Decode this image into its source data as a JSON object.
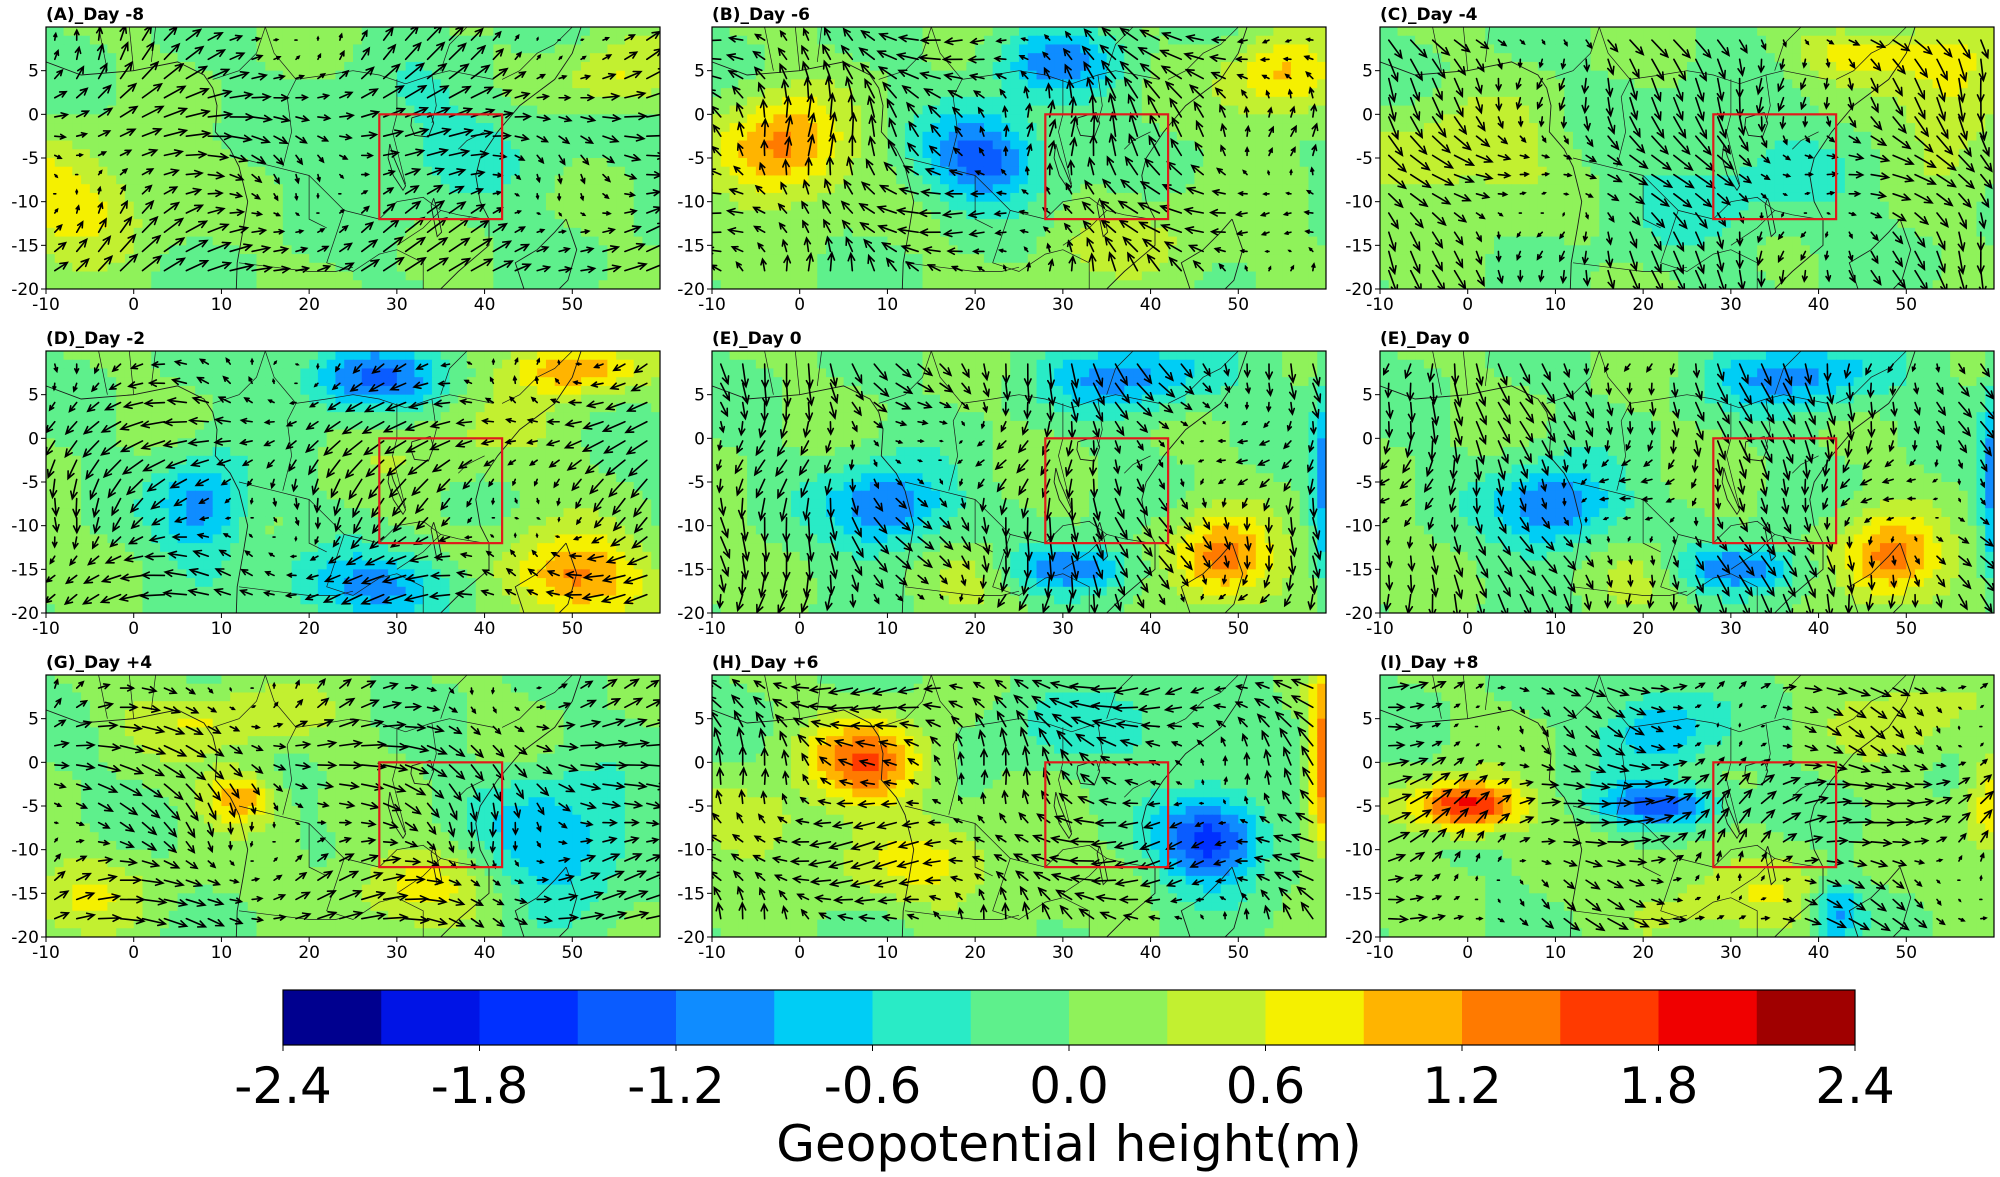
{
  "chart_data": {
    "type": "heatmap",
    "description_variable": "Geopotential height anomaly with wind vectors",
    "panel_xlim": [
      -10,
      60
    ],
    "panel_ylim": [
      -20,
      10
    ],
    "x_ticks": [
      -10,
      0,
      10,
      20,
      30,
      40,
      50
    ],
    "y_ticks": [
      5,
      0,
      -5,
      -10,
      -15,
      -20
    ],
    "region_box": {
      "lon": [
        28,
        42
      ],
      "lat": [
        -12,
        0
      ],
      "color": "#e01b1b"
    },
    "panels": [
      {
        "title": "(A)_Day -8",
        "centers": [
          [
            55,
            4,
            0.7,
            6,
            4
          ],
          [
            -8,
            -10,
            0.8,
            10,
            6
          ],
          [
            35,
            -3,
            -0.35,
            15,
            8
          ]
        ],
        "wind": [
          1.0,
          0.3
        ]
      },
      {
        "title": "(B)_Day -6",
        "centers": [
          [
            -2,
            -4,
            1.35,
            7,
            6
          ],
          [
            21,
            -5,
            -1.4,
            7,
            5
          ],
          [
            29,
            6,
            -1.0,
            7,
            4
          ],
          [
            55,
            4,
            1.0,
            6,
            5
          ],
          [
            40,
            -15,
            0.35,
            12,
            5
          ]
        ],
        "wind": [
          -0.6,
          0.8
        ]
      },
      {
        "title": "(C)_Day -4",
        "centers": [
          [
            0,
            -5,
            0.6,
            10,
            6
          ],
          [
            55,
            2,
            0.75,
            6,
            8
          ],
          [
            45,
            7,
            0.7,
            8,
            3
          ],
          [
            30,
            -8,
            -0.4,
            15,
            8
          ]
        ],
        "wind": [
          0.6,
          -0.9
        ]
      },
      {
        "title": "(D)_Day -2",
        "centers": [
          [
            27,
            7,
            -1.3,
            8,
            4
          ],
          [
            8,
            -8,
            -1.1,
            5,
            6
          ],
          [
            28,
            -17,
            -1.0,
            10,
            4
          ],
          [
            50,
            -16,
            1.35,
            8,
            5
          ],
          [
            50,
            8,
            1.2,
            7,
            3
          ],
          [
            38,
            0,
            0.3,
            12,
            6
          ]
        ],
        "wind": [
          -0.8,
          -0.5
        ]
      },
      {
        "title": "(E)_Day 0",
        "centers": [
          [
            10,
            -8,
            -1.3,
            7,
            5
          ],
          [
            31,
            -15,
            -1.3,
            7,
            3
          ],
          [
            38,
            7,
            -1.0,
            10,
            4
          ],
          [
            48,
            -14,
            1.4,
            6,
            5
          ],
          [
            61,
            -5,
            -1.6,
            2,
            12
          ],
          [
            20,
            -15,
            0.5,
            7,
            4
          ]
        ],
        "wind": [
          0.2,
          -1.0
        ]
      },
      {
        "title": "(E)_Day 0",
        "centers": [
          [
            10,
            -8,
            -1.3,
            7,
            5
          ],
          [
            31,
            -15,
            -1.3,
            7,
            3
          ],
          [
            38,
            7,
            -1.0,
            10,
            4
          ],
          [
            48,
            -14,
            1.4,
            6,
            5
          ],
          [
            61,
            -5,
            -1.6,
            2,
            12
          ],
          [
            20,
            -15,
            0.5,
            7,
            4
          ]
        ],
        "wind": [
          0.2,
          -1.0
        ]
      },
      {
        "title": "(G)_Day +4",
        "centers": [
          [
            12,
            -4,
            1.2,
            4,
            3
          ],
          [
            48,
            -9,
            -1.0,
            8,
            7
          ],
          [
            10,
            5,
            0.6,
            12,
            4
          ],
          [
            32,
            -14,
            0.6,
            10,
            5
          ],
          [
            -5,
            -15,
            0.5,
            8,
            5
          ]
        ],
        "wind": [
          0.9,
          -0.3
        ]
      },
      {
        "title": "(H)_Day +6",
        "centers": [
          [
            8,
            0,
            1.5,
            7,
            5
          ],
          [
            47,
            -9,
            -1.7,
            6,
            5
          ],
          [
            60,
            0,
            1.6,
            2,
            10
          ],
          [
            15,
            -12,
            0.6,
            12,
            5
          ],
          [
            -5,
            -7,
            0.6,
            6,
            4
          ],
          [
            35,
            4,
            -0.4,
            15,
            5
          ]
        ],
        "wind": [
          -0.9,
          0.4
        ]
      },
      {
        "title": "(I)_Day +8",
        "centers": [
          [
            0,
            -5,
            2.0,
            6,
            3
          ],
          [
            22,
            -5,
            -1.4,
            7,
            2.5
          ],
          [
            22,
            4,
            -0.9,
            6,
            5
          ],
          [
            42,
            -17,
            -1.1,
            3,
            4
          ],
          [
            60,
            -5,
            0.9,
            3,
            6
          ],
          [
            30,
            -15,
            0.5,
            15,
            5
          ],
          [
            50,
            5,
            0.5,
            8,
            5
          ]
        ],
        "wind": [
          1.0,
          0.1
        ]
      }
    ],
    "colorbar": {
      "label": "Geopotential height(m)",
      "levels": [
        -2.4,
        -2.1,
        -1.8,
        -1.5,
        -1.2,
        -0.9,
        -0.6,
        -0.3,
        0.0,
        0.3,
        0.6,
        0.9,
        1.2,
        1.5,
        1.8,
        2.1,
        2.4
      ],
      "tick_labels": [
        "-2.4",
        "-1.8",
        "-1.2",
        "-0.6",
        "0.0",
        "0.6",
        "1.2",
        "1.8",
        "2.4"
      ],
      "colors": [
        "#00008f",
        "#0014e6",
        "#0030ff",
        "#0a5cff",
        "#0f8cff",
        "#00cdf5",
        "#29ebc6",
        "#5ef08c",
        "#8ff25a",
        "#c2f030",
        "#f5f000",
        "#ffb400",
        "#ff7a00",
        "#ff3a00",
        "#f00000",
        "#a00000"
      ]
    }
  }
}
